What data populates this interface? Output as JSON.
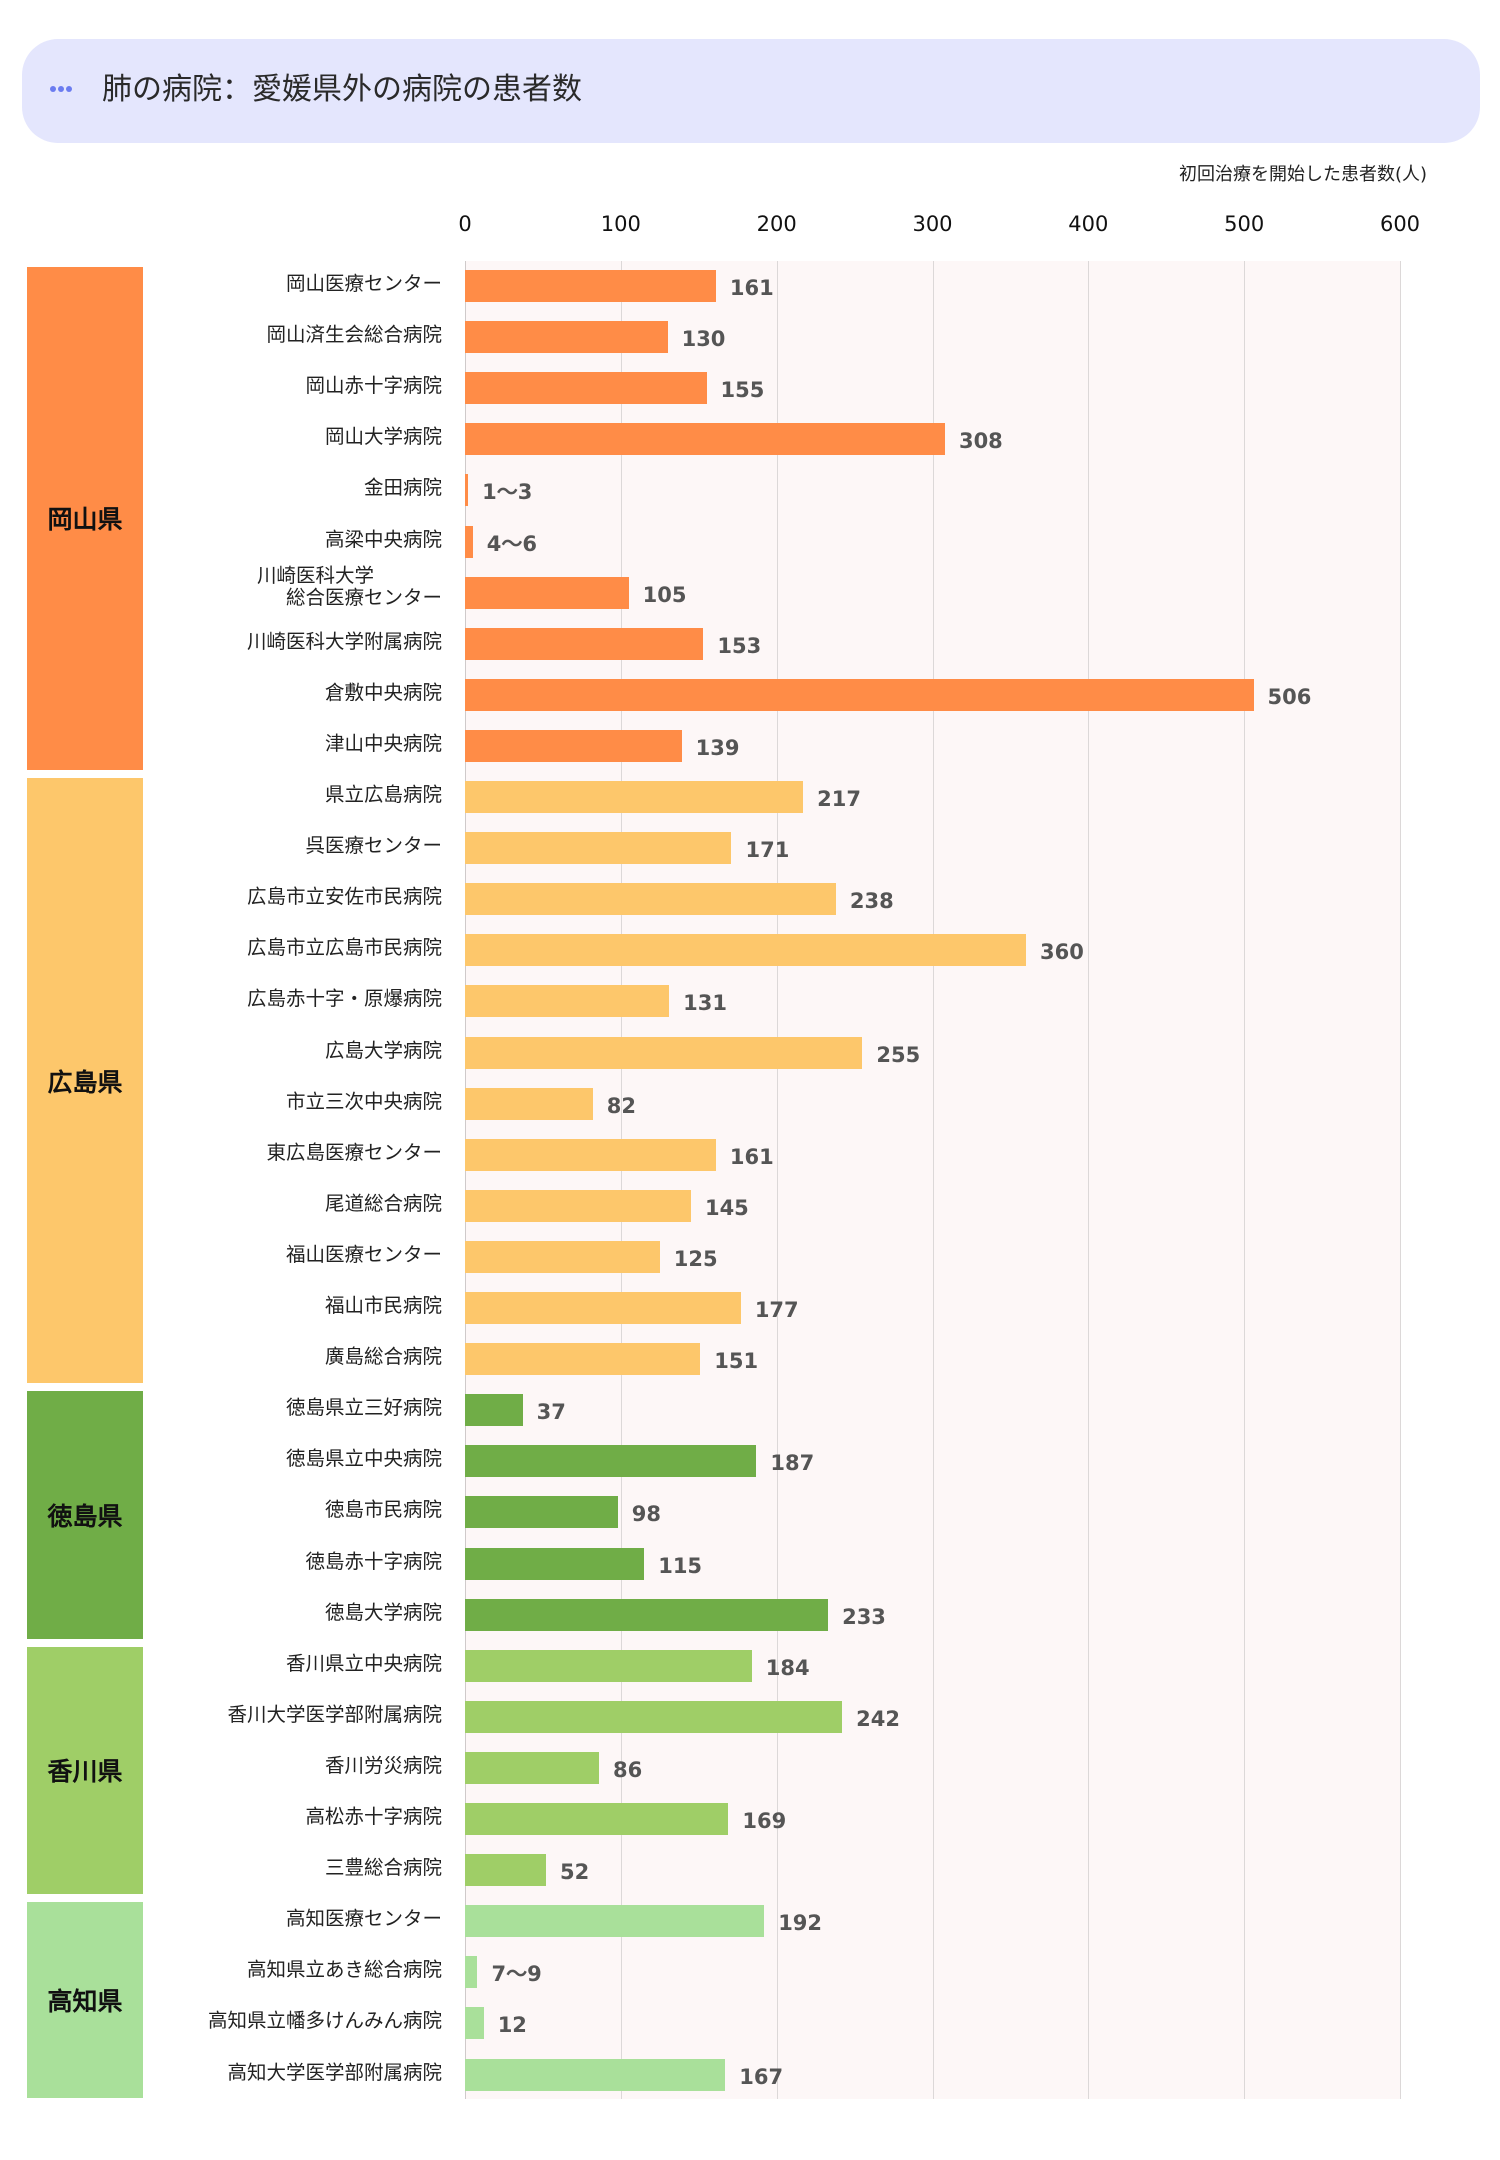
{
  "header": {
    "title": "肺の病院：愛媛県外の病院の患者数",
    "menu_icon": "ellipsis-icon"
  },
  "axis": {
    "unit_label": "初回治療を開始した患者数(人)",
    "ticks": [
      "0",
      "100",
      "200",
      "300",
      "400",
      "500",
      "600"
    ]
  },
  "colors": {
    "okayama": "#ff8c47",
    "hiroshima": "#fdc76b",
    "tokushima": "#70ad47",
    "kagawa": "#9fce67",
    "kochi": "#a9e09a",
    "plot_background": "#fdf7f7",
    "title_background": "#e4e6fd"
  },
  "prefectures": [
    {
      "key": "okayama",
      "label": "岡山県",
      "start": 0,
      "count": 10
    },
    {
      "key": "hiroshima",
      "label": "広島県",
      "start": 10,
      "count": 12
    },
    {
      "key": "tokushima",
      "label": "徳島県",
      "start": 22,
      "count": 5
    },
    {
      "key": "kagawa",
      "label": "香川県",
      "start": 27,
      "count": 5
    },
    {
      "key": "kochi",
      "label": "高知県",
      "start": 32,
      "count": 4
    }
  ],
  "chart_data": {
    "type": "bar",
    "orientation": "horizontal",
    "title": "肺の病院：愛媛県外の病院の患者数",
    "xlabel": "初回治療を開始した患者数(人)",
    "ylabel": "",
    "xlim": [
      0,
      600
    ],
    "x_ticks": [
      0,
      100,
      200,
      300,
      400,
      500,
      600
    ],
    "grid": true,
    "legend": "none (prefecture group labels on left)",
    "categories": [
      "岡山医療センター",
      "岡山済生会総合病院",
      "岡山赤十字病院",
      "岡山大学病院",
      "金田病院",
      "高梁中央病院",
      "川崎医科大学\n総合医療センター",
      "川崎医科大学附属病院",
      "倉敷中央病院",
      "津山中央病院",
      "県立広島病院",
      "呉医療センター",
      "広島市立安佐市民病院",
      "広島市立広島市民病院",
      "広島赤十字・原爆病院",
      "広島大学病院",
      "市立三次中央病院",
      "東広島医療センター",
      "尾道総合病院",
      "福山医療センター",
      "福山市民病院",
      "廣島総合病院",
      "徳島県立三好病院",
      "徳島県立中央病院",
      "徳島市民病院",
      "徳島赤十字病院",
      "徳島大学病院",
      "香川県立中央病院",
      "香川大学医学部附属病院",
      "香川労災病院",
      "高松赤十字病院",
      "三豊総合病院",
      "高知医療センター",
      "高知県立あき総合病院",
      "高知県立幡多けんみん病院",
      "高知大学医学部附属病院"
    ],
    "values": [
      161,
      130,
      155,
      308,
      2,
      5,
      105,
      153,
      506,
      139,
      217,
      171,
      238,
      360,
      131,
      255,
      82,
      161,
      145,
      125,
      177,
      151,
      37,
      187,
      98,
      115,
      233,
      184,
      242,
      86,
      169,
      52,
      192,
      8,
      12,
      167
    ],
    "value_labels": [
      "161",
      "130",
      "155",
      "308",
      "1〜3",
      "4〜6",
      "105",
      "153",
      "506",
      "139",
      "217",
      "171",
      "238",
      "360",
      "131",
      "255",
      "82",
      "161",
      "145",
      "125",
      "177",
      "151",
      "37",
      "187",
      "98",
      "115",
      "233",
      "184",
      "242",
      "86",
      "169",
      "52",
      "192",
      "7〜9",
      "12",
      "167"
    ],
    "groups": [
      "岡山県",
      "岡山県",
      "岡山県",
      "岡山県",
      "岡山県",
      "岡山県",
      "岡山県",
      "岡山県",
      "岡山県",
      "岡山県",
      "広島県",
      "広島県",
      "広島県",
      "広島県",
      "広島県",
      "広島県",
      "広島県",
      "広島県",
      "広島県",
      "広島県",
      "広島県",
      "広島県",
      "徳島県",
      "徳島県",
      "徳島県",
      "徳島県",
      "徳島県",
      "香川県",
      "香川県",
      "香川県",
      "香川県",
      "香川県",
      "高知県",
      "高知県",
      "高知県",
      "高知県"
    ]
  }
}
